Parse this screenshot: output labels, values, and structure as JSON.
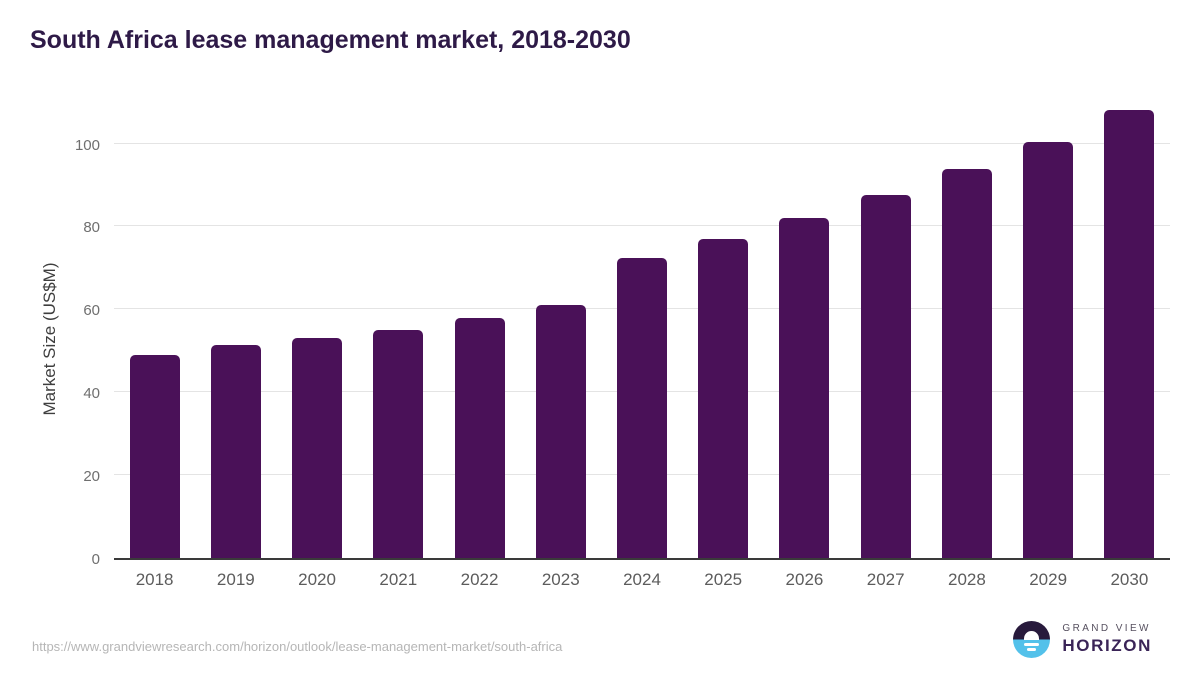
{
  "chart_data": {
    "type": "bar",
    "title": "South Africa lease management market, 2018-2030",
    "categories": [
      "2018",
      "2019",
      "2020",
      "2021",
      "2022",
      "2023",
      "2024",
      "2025",
      "2026",
      "2027",
      "2028",
      "2029",
      "2030"
    ],
    "values": [
      49.0,
      51.5,
      53.0,
      55.1,
      58.0,
      61.1,
      72.4,
      77.0,
      82.0,
      87.5,
      93.9,
      100.5,
      108.2
    ],
    "xlabel": "",
    "ylabel": "Market Size (US$M)",
    "yticks": [
      0,
      20,
      40,
      60,
      80,
      100
    ],
    "ylim": [
      0,
      111
    ],
    "grid": true,
    "legend": false,
    "bar_color": "#4a1158"
  },
  "colors": {
    "title_text": "#2e1a47",
    "bar": "#4a1158",
    "gridline": "#e4e4e4",
    "axis_line": "#3a3a3a",
    "tick_label": "#6f6f6f",
    "axis_title": "#3e3e3e",
    "footer_url": "#b6b6b6",
    "logo_dark": "#281a3c",
    "logo_blue": "#53c1ea",
    "logo_horizon_text": "#3a2457"
  },
  "footer": {
    "source_url": "https://www.grandviewresearch.com/horizon/outlook/lease-management-market/south-africa",
    "logo": {
      "brand_top": "GRAND VIEW",
      "brand_bottom": "HORIZON",
      "icon": "sunrise-circle-icon"
    }
  }
}
